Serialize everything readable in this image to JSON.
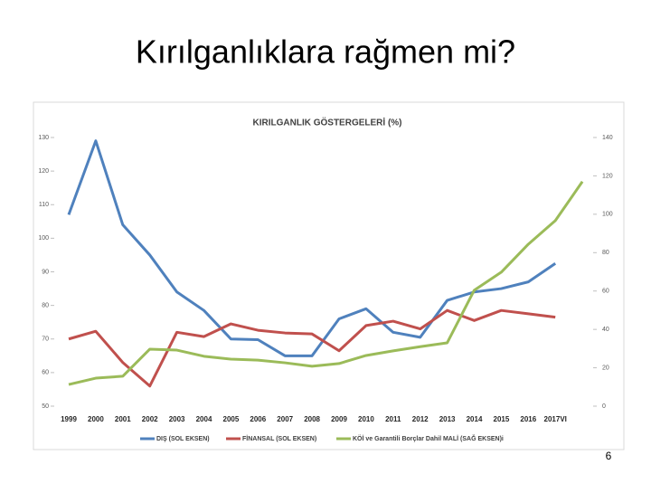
{
  "slide": {
    "title": "Kırılganlıklara rağmen mi?",
    "page_number": 6
  },
  "chart_data": {
    "type": "line",
    "title": "KIRILGANLIK GÖSTERGELERİ (%)",
    "categories": [
      "1999",
      "2000",
      "2001",
      "2002",
      "2003",
      "2004",
      "2005",
      "2006",
      "2007",
      "2008",
      "2009",
      "2010",
      "2011",
      "2012",
      "2013",
      "2014",
      "2015",
      "2016",
      "2017VI",
      null
    ],
    "series": [
      {
        "name": "DIŞ (SOL EKSEN)",
        "color": "#4f81bd",
        "values": [
          107,
          129,
          104,
          95,
          84,
          78.5,
          70,
          69.8,
          65,
          65,
          76,
          79,
          72,
          70.5,
          81.5,
          84,
          85,
          87,
          92.5,
          null
        ]
      },
      {
        "name": "FİNANSAL (SOL EKSEN)",
        "color": "#c0504d",
        "values": [
          70,
          72.3,
          63,
          56,
          72,
          70.7,
          74.5,
          72.6,
          71.8,
          71.5,
          66.5,
          74,
          75.3,
          73,
          78.5,
          75.5,
          78.5,
          77.5,
          76.5,
          null
        ]
      },
      {
        "name": "KÖİ ve Garantili Borçlar Dahil MALİ (SAĞ EKSEN)i",
        "color": "#9bbb59",
        "axis": "y2",
        "values": [
          11.3,
          14.6,
          15.6,
          29.7,
          29.2,
          26,
          24.5,
          24,
          22.6,
          20.8,
          22.2,
          26.4,
          28.8,
          31,
          33,
          60.4,
          69.8,
          84.4,
          96.7,
          117
        ]
      }
    ],
    "ylim": [
      50,
      130
    ],
    "yticks": [
      50,
      60,
      70,
      80,
      90,
      100,
      110,
      120,
      130
    ],
    "y2lim": [
      0,
      140
    ],
    "y2ticks": [
      0,
      20,
      40,
      60,
      80,
      100,
      120,
      140
    ],
    "legend": "bottom"
  }
}
